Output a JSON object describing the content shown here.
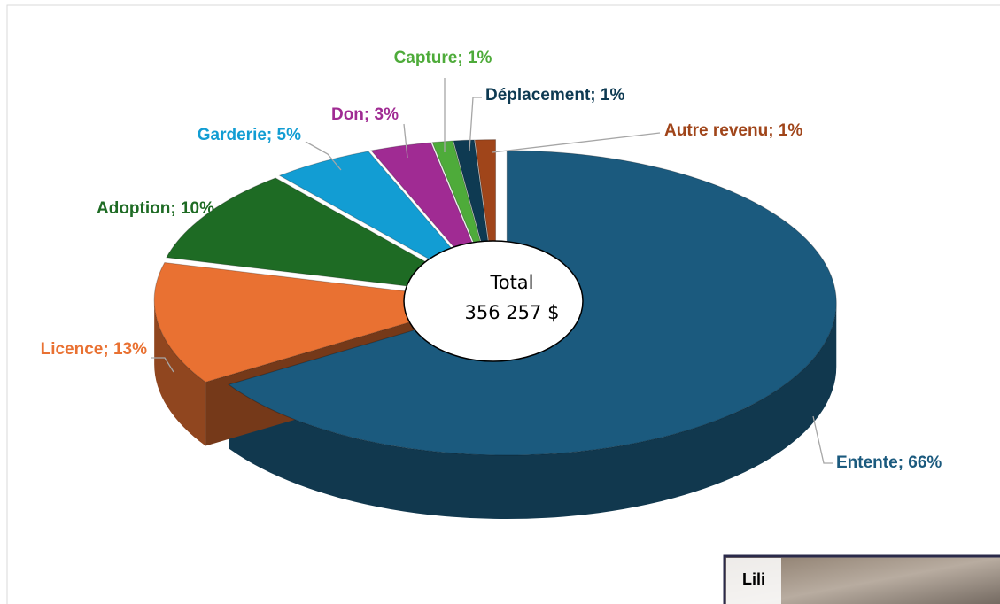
{
  "chart_data": {
    "type": "pie",
    "categories": [
      "Entente",
      "Licence",
      "Adoption",
      "Garderie",
      "Don",
      "Capture",
      "Déplacement",
      "Autre revenu"
    ],
    "values": [
      66,
      13,
      10,
      5,
      3,
      1,
      1,
      1
    ],
    "value_labels": [
      "66%",
      "13%",
      "10%",
      "5%",
      "3%",
      "1%",
      "1%",
      "1%"
    ],
    "label_separator": "; ",
    "colors": [
      "#1b5a7e",
      "#e97132",
      "#1e6b24",
      "#129dd3",
      "#a02b93",
      "#4eab3a",
      "#0e3a52",
      "#a0451a"
    ],
    "label_colors": [
      "#1b5a7e",
      "#e97132",
      "#1e6b24",
      "#129dd3",
      "#a02b93",
      "#4eab3a",
      "#0e3a52",
      "#a0451a"
    ],
    "center_label": [
      "Total",
      "356 257 $"
    ]
  },
  "photo_caption": "Lili"
}
